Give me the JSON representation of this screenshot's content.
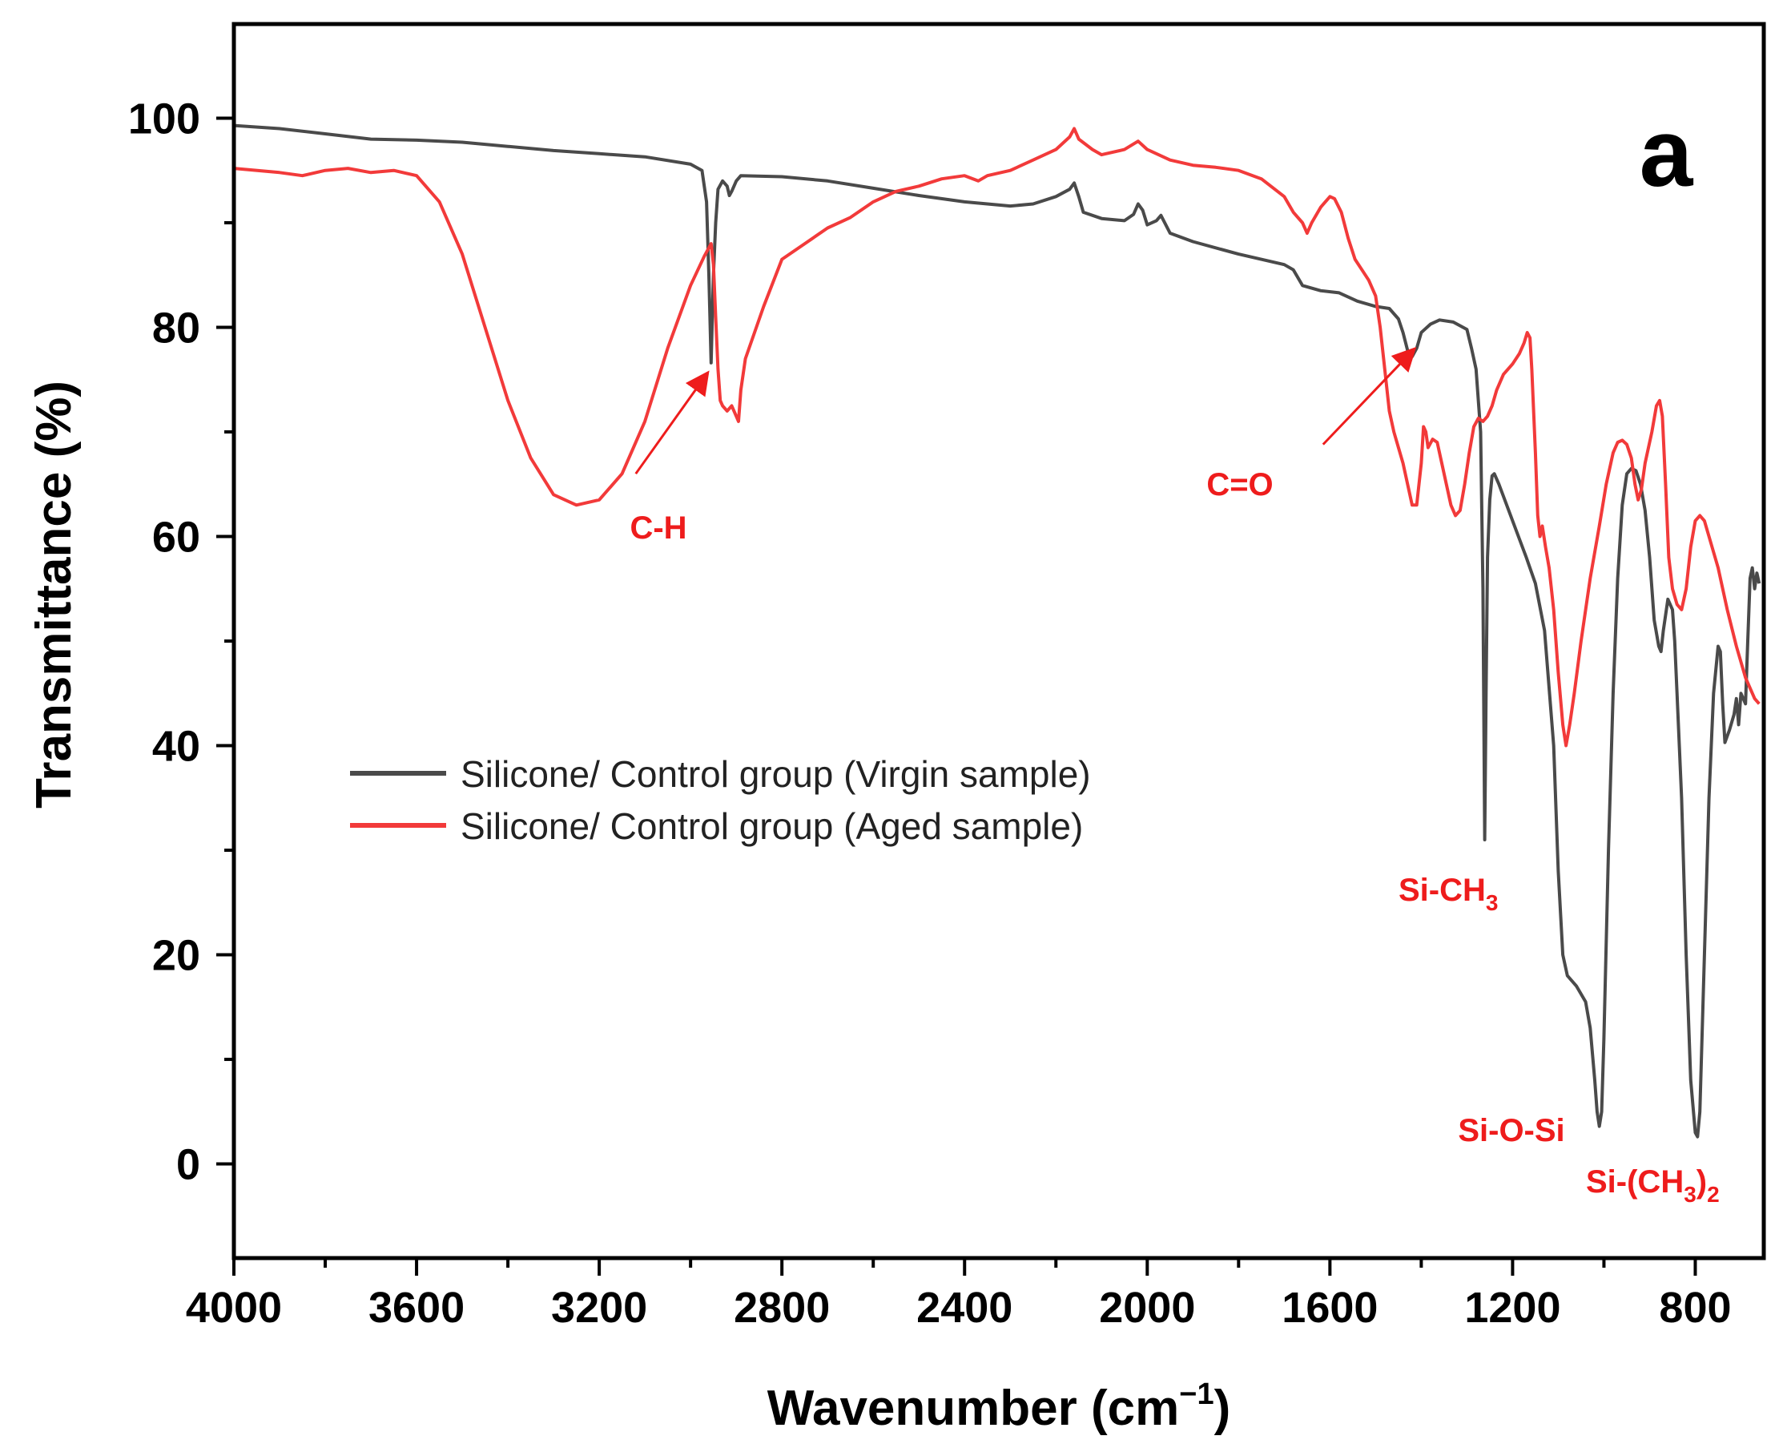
{
  "chart_data": {
    "type": "line",
    "panel_label": "a",
    "xlabel_main": "Wavenumber (cm",
    "xlabel_sup": "−1",
    "xlabel_close": ")",
    "ylabel": "Transmittance (%)",
    "xlim": [
      4000,
      650
    ],
    "ylim": [
      -9,
      109
    ],
    "x_ticks": [
      4000,
      3600,
      3200,
      2800,
      2400,
      2000,
      1600,
      1200,
      800
    ],
    "x_tick_labels": [
      "4000",
      "3600",
      "3200",
      "2800",
      "2400",
      "2000",
      "1600",
      "1200",
      "800"
    ],
    "y_ticks": [
      0,
      20,
      40,
      60,
      80,
      100
    ],
    "y_tick_labels": [
      "0",
      "20",
      "40",
      "60",
      "80",
      "100"
    ],
    "legend_position": "center-left",
    "series": [
      {
        "name": "Silicone/ Control group (Virgin sample)",
        "color": "#4a4a4a",
        "points": [
          [
            4000,
            99.3
          ],
          [
            3900,
            99.0
          ],
          [
            3800,
            98.5
          ],
          [
            3700,
            98.0
          ],
          [
            3600,
            97.9
          ],
          [
            3500,
            97.7
          ],
          [
            3400,
            97.3
          ],
          [
            3300,
            96.9
          ],
          [
            3200,
            96.6
          ],
          [
            3100,
            96.3
          ],
          [
            3000,
            95.6
          ],
          [
            2975,
            95.0
          ],
          [
            2965,
            92.0
          ],
          [
            2960,
            85.0
          ],
          [
            2955,
            76.6
          ],
          [
            2950,
            85.0
          ],
          [
            2945,
            90.0
          ],
          [
            2940,
            93.2
          ],
          [
            2930,
            94.0
          ],
          [
            2920,
            93.5
          ],
          [
            2915,
            92.6
          ],
          [
            2910,
            93.0
          ],
          [
            2900,
            94.0
          ],
          [
            2890,
            94.5
          ],
          [
            2800,
            94.4
          ],
          [
            2700,
            94.0
          ],
          [
            2600,
            93.3
          ],
          [
            2500,
            92.6
          ],
          [
            2400,
            92.0
          ],
          [
            2300,
            91.6
          ],
          [
            2250,
            91.8
          ],
          [
            2200,
            92.5
          ],
          [
            2170,
            93.2
          ],
          [
            2160,
            93.8
          ],
          [
            2150,
            92.5
          ],
          [
            2140,
            91.0
          ],
          [
            2100,
            90.4
          ],
          [
            2050,
            90.2
          ],
          [
            2030,
            90.8
          ],
          [
            2020,
            91.8
          ],
          [
            2010,
            91.2
          ],
          [
            2000,
            89.8
          ],
          [
            1980,
            90.2
          ],
          [
            1970,
            90.7
          ],
          [
            1950,
            89.0
          ],
          [
            1900,
            88.2
          ],
          [
            1800,
            87.0
          ],
          [
            1700,
            86.0
          ],
          [
            1680,
            85.5
          ],
          [
            1660,
            84.0
          ],
          [
            1620,
            83.5
          ],
          [
            1580,
            83.3
          ],
          [
            1540,
            82.5
          ],
          [
            1500,
            82.0
          ],
          [
            1470,
            81.8
          ],
          [
            1450,
            80.8
          ],
          [
            1440,
            79.5
          ],
          [
            1430,
            77.8
          ],
          [
            1420,
            77.2
          ],
          [
            1410,
            78.0
          ],
          [
            1400,
            79.5
          ],
          [
            1380,
            80.3
          ],
          [
            1360,
            80.7
          ],
          [
            1330,
            80.5
          ],
          [
            1300,
            79.8
          ],
          [
            1290,
            78.0
          ],
          [
            1280,
            76.0
          ],
          [
            1270,
            70.0
          ],
          [
            1265,
            55.0
          ],
          [
            1261,
            31.0
          ],
          [
            1258,
            45.0
          ],
          [
            1255,
            58.0
          ],
          [
            1250,
            63.5
          ],
          [
            1245,
            65.8
          ],
          [
            1240,
            66.0
          ],
          [
            1230,
            65.0
          ],
          [
            1200,
            61.5
          ],
          [
            1170,
            58.0
          ],
          [
            1150,
            55.5
          ],
          [
            1130,
            51.0
          ],
          [
            1110,
            40.0
          ],
          [
            1100,
            28.0
          ],
          [
            1090,
            20.0
          ],
          [
            1080,
            18.0
          ],
          [
            1060,
            17.0
          ],
          [
            1040,
            15.5
          ],
          [
            1030,
            13.0
          ],
          [
            1020,
            8.0
          ],
          [
            1015,
            5.0
          ],
          [
            1010,
            3.6
          ],
          [
            1005,
            5.0
          ],
          [
            1000,
            12.0
          ],
          [
            990,
            30.0
          ],
          [
            980,
            45.0
          ],
          [
            970,
            56.0
          ],
          [
            960,
            63.0
          ],
          [
            950,
            66.0
          ],
          [
            940,
            66.5
          ],
          [
            930,
            66.3
          ],
          [
            920,
            65.0
          ],
          [
            910,
            62.5
          ],
          [
            900,
            58.0
          ],
          [
            890,
            52.0
          ],
          [
            880,
            49.5
          ],
          [
            875,
            49.0
          ],
          [
            870,
            51.0
          ],
          [
            860,
            54.0
          ],
          [
            850,
            53.0
          ],
          [
            845,
            50.0
          ],
          [
            840,
            45.0
          ],
          [
            830,
            35.0
          ],
          [
            820,
            20.0
          ],
          [
            810,
            8.0
          ],
          [
            800,
            3.0
          ],
          [
            795,
            2.6
          ],
          [
            790,
            5.0
          ],
          [
            780,
            20.0
          ],
          [
            770,
            35.0
          ],
          [
            760,
            45.0
          ],
          [
            750,
            49.5
          ],
          [
            745,
            49.0
          ],
          [
            740,
            44.0
          ],
          [
            735,
            40.3
          ],
          [
            725,
            41.5
          ],
          [
            715,
            43.0
          ],
          [
            710,
            44.5
          ],
          [
            705,
            42.0
          ],
          [
            700,
            45.0
          ],
          [
            690,
            44.0
          ],
          [
            685,
            50.0
          ],
          [
            680,
            56.0
          ],
          [
            675,
            57.0
          ],
          [
            670,
            55.0
          ],
          [
            665,
            56.5
          ],
          [
            660,
            55.5
          ]
        ]
      },
      {
        "name": "Silicone/ Control group (Aged sample)",
        "color": "#f23a3a",
        "points": [
          [
            4000,
            95.2
          ],
          [
            3900,
            94.8
          ],
          [
            3850,
            94.5
          ],
          [
            3800,
            95.0
          ],
          [
            3750,
            95.2
          ],
          [
            3700,
            94.8
          ],
          [
            3650,
            95.0
          ],
          [
            3600,
            94.5
          ],
          [
            3550,
            92.0
          ],
          [
            3500,
            87.0
          ],
          [
            3450,
            80.0
          ],
          [
            3400,
            73.0
          ],
          [
            3350,
            67.5
          ],
          [
            3300,
            64.0
          ],
          [
            3250,
            63.0
          ],
          [
            3200,
            63.5
          ],
          [
            3150,
            66.0
          ],
          [
            3100,
            71.0
          ],
          [
            3050,
            78.0
          ],
          [
            3000,
            84.0
          ],
          [
            2970,
            86.8
          ],
          [
            2955,
            88.0
          ],
          [
            2950,
            86.0
          ],
          [
            2945,
            81.0
          ],
          [
            2940,
            76.0
          ],
          [
            2935,
            73.0
          ],
          [
            2930,
            72.5
          ],
          [
            2920,
            72.0
          ],
          [
            2910,
            72.5
          ],
          [
            2900,
            71.5
          ],
          [
            2895,
            71.0
          ],
          [
            2890,
            74.0
          ],
          [
            2880,
            77.0
          ],
          [
            2860,
            79.5
          ],
          [
            2840,
            82.0
          ],
          [
            2800,
            86.5
          ],
          [
            2750,
            88.0
          ],
          [
            2700,
            89.5
          ],
          [
            2650,
            90.5
          ],
          [
            2600,
            92.0
          ],
          [
            2550,
            93.0
          ],
          [
            2500,
            93.5
          ],
          [
            2450,
            94.2
          ],
          [
            2400,
            94.5
          ],
          [
            2370,
            94.0
          ],
          [
            2350,
            94.5
          ],
          [
            2300,
            95.0
          ],
          [
            2250,
            96.0
          ],
          [
            2200,
            97.0
          ],
          [
            2170,
            98.2
          ],
          [
            2160,
            99.0
          ],
          [
            2150,
            98.0
          ],
          [
            2120,
            97.0
          ],
          [
            2100,
            96.5
          ],
          [
            2050,
            97.0
          ],
          [
            2020,
            97.8
          ],
          [
            2000,
            97.0
          ],
          [
            1950,
            96.0
          ],
          [
            1900,
            95.5
          ],
          [
            1850,
            95.3
          ],
          [
            1800,
            95.0
          ],
          [
            1750,
            94.2
          ],
          [
            1700,
            92.5
          ],
          [
            1680,
            91.0
          ],
          [
            1660,
            90.0
          ],
          [
            1650,
            89.0
          ],
          [
            1640,
            90.0
          ],
          [
            1620,
            91.5
          ],
          [
            1600,
            92.5
          ],
          [
            1590,
            92.3
          ],
          [
            1575,
            91.0
          ],
          [
            1560,
            88.5
          ],
          [
            1545,
            86.5
          ],
          [
            1530,
            85.5
          ],
          [
            1515,
            84.5
          ],
          [
            1500,
            83.0
          ],
          [
            1490,
            80.0
          ],
          [
            1480,
            76.0
          ],
          [
            1470,
            72.0
          ],
          [
            1460,
            70.0
          ],
          [
            1450,
            68.5
          ],
          [
            1440,
            67.0
          ],
          [
            1430,
            65.0
          ],
          [
            1420,
            63.0
          ],
          [
            1410,
            63.0
          ],
          [
            1400,
            67.0
          ],
          [
            1395,
            70.5
          ],
          [
            1390,
            70.0
          ],
          [
            1385,
            68.5
          ],
          [
            1375,
            69.3
          ],
          [
            1365,
            69.0
          ],
          [
            1355,
            67.0
          ],
          [
            1345,
            65.0
          ],
          [
            1335,
            63.0
          ],
          [
            1325,
            62.0
          ],
          [
            1315,
            62.5
          ],
          [
            1305,
            65.0
          ],
          [
            1295,
            68.0
          ],
          [
            1285,
            70.5
          ],
          [
            1275,
            71.3
          ],
          [
            1265,
            71.0
          ],
          [
            1255,
            71.5
          ],
          [
            1245,
            72.5
          ],
          [
            1235,
            74.0
          ],
          [
            1220,
            75.5
          ],
          [
            1200,
            76.5
          ],
          [
            1185,
            77.5
          ],
          [
            1175,
            78.5
          ],
          [
            1168,
            79.5
          ],
          [
            1162,
            79.0
          ],
          [
            1158,
            76.0
          ],
          [
            1150,
            68.0
          ],
          [
            1145,
            62.0
          ],
          [
            1140,
            60.0
          ],
          [
            1135,
            61.0
          ],
          [
            1128,
            59.0
          ],
          [
            1120,
            57.0
          ],
          [
            1110,
            53.0
          ],
          [
            1100,
            47.0
          ],
          [
            1090,
            42.0
          ],
          [
            1083,
            40.0
          ],
          [
            1075,
            42.0
          ],
          [
            1065,
            45.0
          ],
          [
            1050,
            50.0
          ],
          [
            1030,
            56.0
          ],
          [
            1010,
            61.0
          ],
          [
            995,
            65.0
          ],
          [
            980,
            68.0
          ],
          [
            970,
            69.0
          ],
          [
            960,
            69.2
          ],
          [
            950,
            68.8
          ],
          [
            940,
            67.5
          ],
          [
            932,
            65.0
          ],
          [
            925,
            63.5
          ],
          [
            918,
            64.5
          ],
          [
            910,
            67.0
          ],
          [
            895,
            70.0
          ],
          [
            885,
            72.5
          ],
          [
            878,
            73.0
          ],
          [
            872,
            71.5
          ],
          [
            865,
            65.0
          ],
          [
            858,
            58.0
          ],
          [
            850,
            55.0
          ],
          [
            840,
            53.5
          ],
          [
            830,
            53.0
          ],
          [
            820,
            55.0
          ],
          [
            810,
            59.0
          ],
          [
            800,
            61.5
          ],
          [
            790,
            62.0
          ],
          [
            780,
            61.5
          ],
          [
            770,
            60.0
          ],
          [
            750,
            57.0
          ],
          [
            730,
            53.0
          ],
          [
            710,
            49.5
          ],
          [
            690,
            46.5
          ],
          [
            670,
            44.5
          ],
          [
            660,
            44.0
          ]
        ]
      }
    ],
    "annotations": [
      {
        "label": "C-H",
        "arrow_from": [
          3120,
          66.0
        ],
        "arrow_to": [
          2965,
          75.5
        ]
      },
      {
        "label": "C=O",
        "arrow_from": [
          1615,
          68.8
        ],
        "arrow_to": [
          1418,
          77.8
        ]
      },
      {
        "label": "Si-CH",
        "subscript": "3"
      },
      {
        "label": "Si-O-Si"
      },
      {
        "label": "Si-(CH",
        "subscript": "3",
        "suffix": ")",
        "suffix_subscript": "2"
      }
    ]
  }
}
